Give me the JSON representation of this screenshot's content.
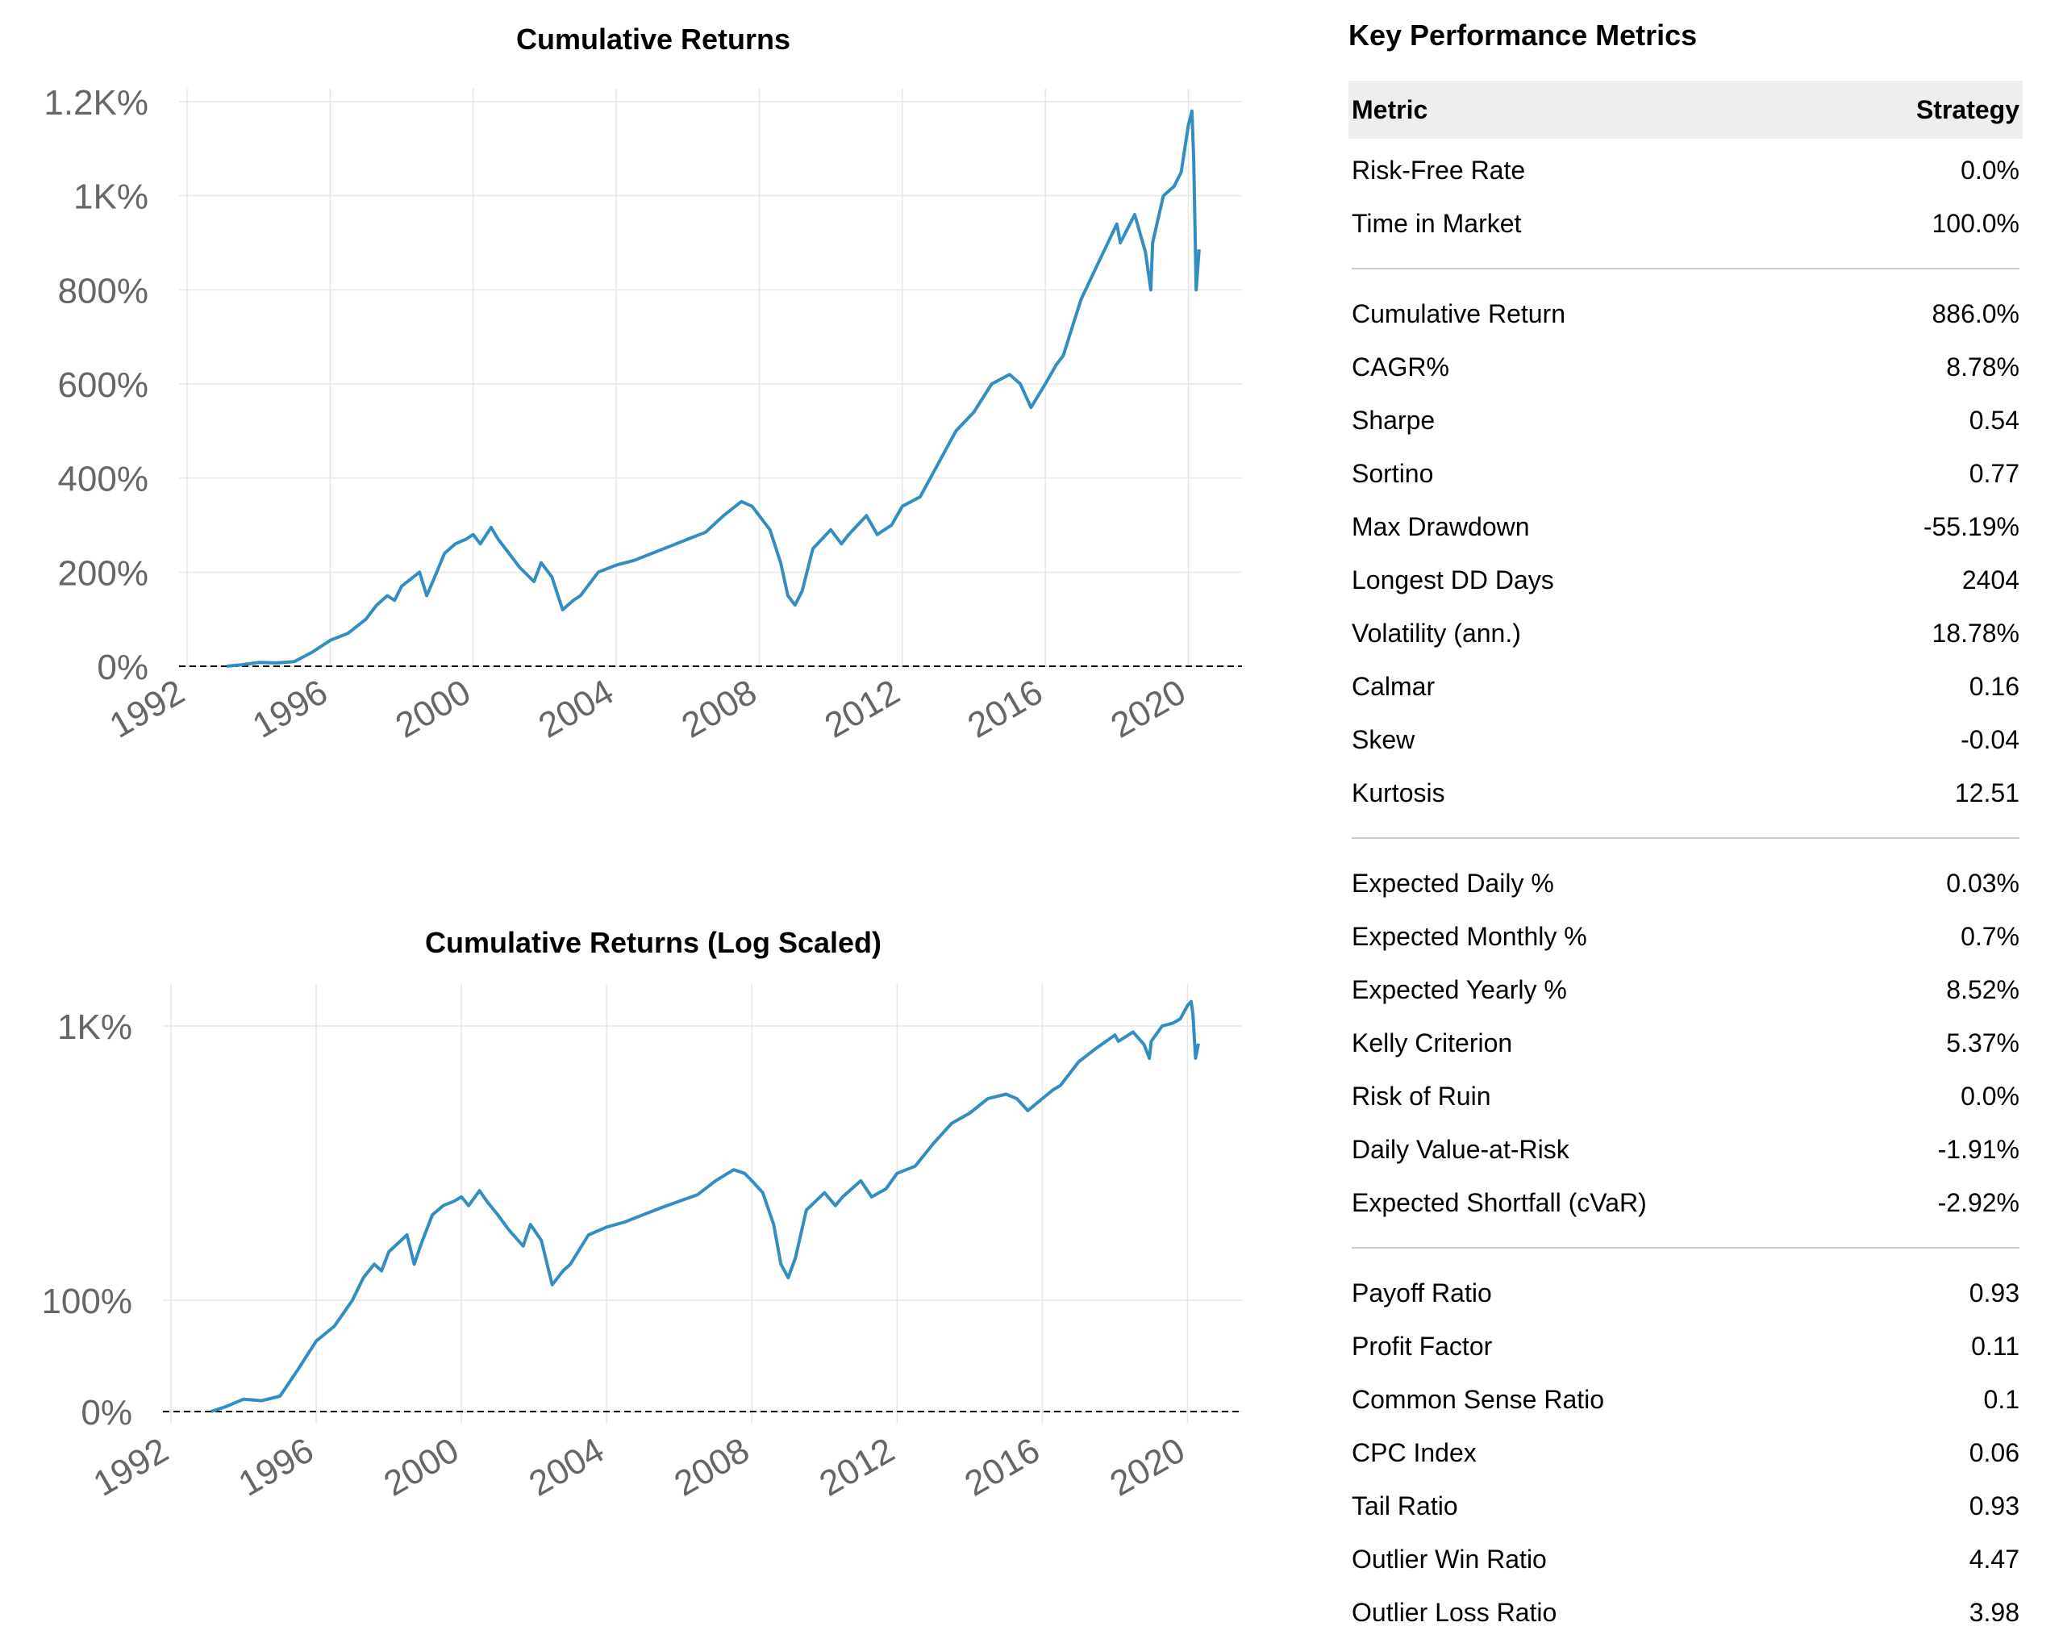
{
  "chart_data": [
    {
      "type": "line",
      "title": "Cumulative Returns",
      "x_ticks": [
        "1992",
        "1996",
        "2000",
        "2004",
        "2008",
        "2012",
        "2016",
        "2020"
      ],
      "y_ticks": [
        "0%",
        "200%",
        "400%",
        "600%",
        "800%",
        "1K%",
        "1.2K%"
      ],
      "xlim": [
        1992,
        2021.5
      ],
      "ylim": [
        -30,
        1220
      ],
      "y_scale": "linear",
      "grid": true,
      "baseline": 0,
      "color": "#348dc1",
      "x": [
        1993.1,
        1993.5,
        1994.0,
        1994.5,
        1995.0,
        1995.5,
        1996.0,
        1996.5,
        1997.0,
        1997.3,
        1997.6,
        1997.8,
        1998.0,
        1998.5,
        1998.7,
        1998.9,
        1999.2,
        1999.5,
        1999.8,
        2000.0,
        2000.2,
        2000.5,
        2000.7,
        2001.0,
        2001.3,
        2001.7,
        2001.9,
        2002.2,
        2002.5,
        2002.8,
        2003.0,
        2003.5,
        2004.0,
        2004.5,
        2005.0,
        2005.5,
        2006.0,
        2006.5,
        2007.0,
        2007.5,
        2007.8,
        2008.0,
        2008.3,
        2008.6,
        2008.8,
        2009.0,
        2009.2,
        2009.5,
        2010.0,
        2010.3,
        2010.5,
        2011.0,
        2011.3,
        2011.7,
        2012.0,
        2012.5,
        2013.0,
        2013.5,
        2014.0,
        2014.5,
        2015.0,
        2015.3,
        2015.6,
        2016.0,
        2016.3,
        2016.5,
        2017.0,
        2017.5,
        2018.0,
        2018.1,
        2018.5,
        2018.8,
        2018.95,
        2019.0,
        2019.3,
        2019.6,
        2019.8,
        2020.0,
        2020.1,
        2020.15,
        2020.22,
        2020.3
      ],
      "y": [
        0,
        3,
        8,
        7,
        10,
        30,
        55,
        70,
        100,
        130,
        150,
        140,
        170,
        200,
        150,
        185,
        240,
        260,
        270,
        280,
        260,
        295,
        270,
        240,
        210,
        180,
        220,
        190,
        120,
        140,
        150,
        200,
        215,
        225,
        240,
        255,
        270,
        285,
        320,
        350,
        340,
        320,
        290,
        220,
        150,
        130,
        160,
        250,
        290,
        260,
        280,
        320,
        280,
        300,
        340,
        360,
        430,
        500,
        540,
        600,
        620,
        600,
        550,
        600,
        640,
        660,
        780,
        860,
        940,
        900,
        960,
        880,
        800,
        900,
        1000,
        1020,
        1050,
        1150,
        1180,
        1080,
        800,
        886
      ]
    },
    {
      "type": "line",
      "title": "Cumulative Returns (Log Scaled)",
      "x_ticks": [
        "1992",
        "1996",
        "2000",
        "2004",
        "2008",
        "2012",
        "2016",
        "2020"
      ],
      "y_ticks": [
        "0%",
        "100%",
        "1K%"
      ],
      "xlim": [
        1992,
        2021.5
      ],
      "y_scale": "log1p",
      "grid": true,
      "baseline": 0,
      "color": "#348dc1",
      "x": [
        1993.1,
        1993.5,
        1994.0,
        1994.5,
        1995.0,
        1995.5,
        1996.0,
        1996.5,
        1997.0,
        1997.3,
        1997.6,
        1997.8,
        1998.0,
        1998.5,
        1998.7,
        1998.9,
        1999.2,
        1999.5,
        1999.8,
        2000.0,
        2000.2,
        2000.5,
        2000.7,
        2001.0,
        2001.3,
        2001.7,
        2001.9,
        2002.2,
        2002.5,
        2002.8,
        2003.0,
        2003.5,
        2004.0,
        2004.5,
        2005.0,
        2005.5,
        2006.0,
        2006.5,
        2007.0,
        2007.5,
        2007.8,
        2008.0,
        2008.3,
        2008.6,
        2008.8,
        2009.0,
        2009.2,
        2009.5,
        2010.0,
        2010.3,
        2010.5,
        2011.0,
        2011.3,
        2011.7,
        2012.0,
        2012.5,
        2013.0,
        2013.5,
        2014.0,
        2014.5,
        2015.0,
        2015.3,
        2015.6,
        2016.0,
        2016.3,
        2016.5,
        2017.0,
        2017.5,
        2018.0,
        2018.1,
        2018.5,
        2018.8,
        2018.95,
        2019.0,
        2019.3,
        2019.6,
        2019.8,
        2020.0,
        2020.1,
        2020.15,
        2020.22,
        2020.3
      ],
      "y": [
        0,
        3,
        8,
        7,
        10,
        30,
        55,
        70,
        100,
        130,
        150,
        140,
        170,
        200,
        150,
        185,
        240,
        260,
        270,
        280,
        260,
        295,
        270,
        240,
        210,
        180,
        220,
        190,
        120,
        140,
        150,
        200,
        215,
        225,
        240,
        255,
        270,
        285,
        320,
        350,
        340,
        320,
        290,
        220,
        150,
        130,
        160,
        250,
        290,
        260,
        280,
        320,
        280,
        300,
        340,
        360,
        430,
        500,
        540,
        600,
        620,
        600,
        550,
        600,
        640,
        660,
        780,
        860,
        940,
        900,
        960,
        880,
        800,
        900,
        1000,
        1020,
        1050,
        1150,
        1180,
        1080,
        800,
        886
      ]
    }
  ],
  "metrics": {
    "title": "Key Performance Metrics",
    "header": {
      "metric": "Metric",
      "value": "Strategy"
    },
    "groups": [
      [
        {
          "label": "Risk-Free Rate",
          "value": "0.0%"
        },
        {
          "label": "Time in Market",
          "value": "100.0%"
        }
      ],
      [
        {
          "label": "Cumulative Return",
          "value": "886.0%"
        },
        {
          "label": "CAGR%",
          "value": "8.78%"
        },
        {
          "label": "Sharpe",
          "value": "0.54"
        },
        {
          "label": "Sortino",
          "value": "0.77"
        },
        {
          "label": "Max Drawdown",
          "value": "-55.19%"
        },
        {
          "label": "Longest DD Days",
          "value": "2404"
        },
        {
          "label": "Volatility (ann.)",
          "value": "18.78%"
        },
        {
          "label": "Calmar",
          "value": "0.16"
        },
        {
          "label": "Skew",
          "value": "-0.04"
        },
        {
          "label": "Kurtosis",
          "value": "12.51"
        }
      ],
      [
        {
          "label": "Expected Daily %",
          "value": "0.03%"
        },
        {
          "label": "Expected Monthly %",
          "value": "0.7%"
        },
        {
          "label": "Expected Yearly %",
          "value": "8.52%"
        },
        {
          "label": "Kelly Criterion",
          "value": "5.37%"
        },
        {
          "label": "Risk of Ruin",
          "value": "0.0%"
        },
        {
          "label": "Daily Value-at-Risk",
          "value": "-1.91%"
        },
        {
          "label": "Expected Shortfall (cVaR)",
          "value": "-2.92%"
        }
      ],
      [
        {
          "label": "Payoff Ratio",
          "value": "0.93"
        },
        {
          "label": "Profit Factor",
          "value": "0.11"
        },
        {
          "label": "Common Sense Ratio",
          "value": "0.1"
        },
        {
          "label": "CPC Index",
          "value": "0.06"
        },
        {
          "label": "Tail Ratio",
          "value": "0.93"
        },
        {
          "label": "Outlier Win Ratio",
          "value": "4.47"
        },
        {
          "label": "Outlier Loss Ratio",
          "value": "3.98"
        }
      ]
    ]
  }
}
